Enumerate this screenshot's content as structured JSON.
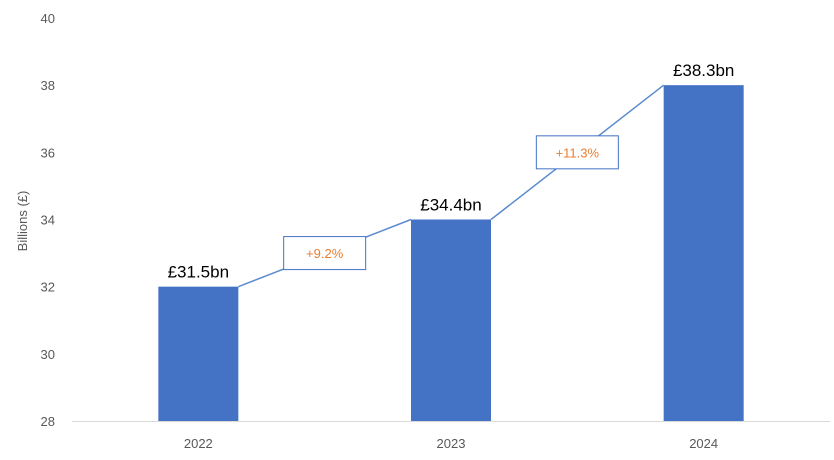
{
  "chart_data": {
    "type": "bar",
    "categories": [
      "2022",
      "2023",
      "2024"
    ],
    "values": [
      32,
      34,
      38
    ],
    "data_labels": [
      "£31.5bn",
      "£34.4bn",
      "£38.3bn"
    ],
    "growth_labels": [
      "+9.2%",
      "+11.3%"
    ],
    "ylabel": "Billions (£)",
    "ylim": [
      28,
      40
    ],
    "yticks": [
      28,
      30,
      32,
      34,
      36,
      38,
      40
    ],
    "grid": false,
    "legend": "none",
    "colors": {
      "bar": "#4472C4",
      "connector": "#5B8BD0",
      "growth_text": "#ED7D31",
      "growth_box_border": "#4472C4",
      "axis": "#D9D9D9",
      "tick_text": "#595959"
    }
  }
}
